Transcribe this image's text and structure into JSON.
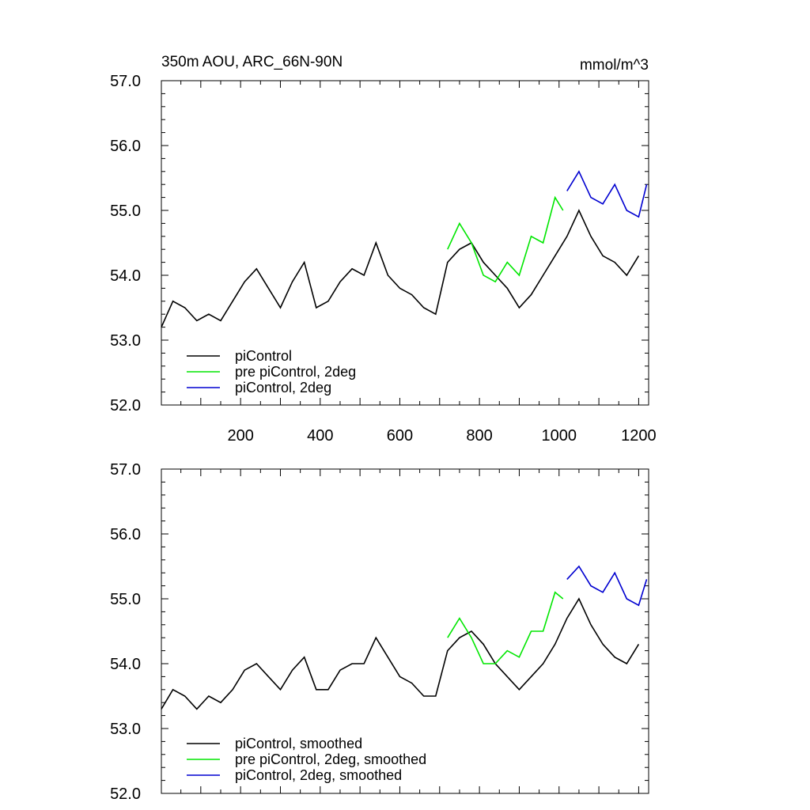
{
  "colors": {
    "black": "#000000",
    "green": "#00e600",
    "blue": "#0000d0"
  },
  "chart_data": [
    {
      "type": "line",
      "title": "350m AOU, ARC_66N-90N",
      "units_label": "mmol/m^3",
      "xlim": [
        1,
        1225
      ],
      "ylim": [
        52.0,
        57.0
      ],
      "xticks": [
        200,
        400,
        600,
        800,
        1000,
        1200
      ],
      "xtick_labels": [
        "200",
        "400",
        "600",
        "800",
        "1000",
        "1200"
      ],
      "yticks": [
        52.0,
        53.0,
        54.0,
        55.0,
        56.0,
        57.0
      ],
      "ytick_labels": [
        "52.0",
        "53.0",
        "54.0",
        "55.0",
        "56.0",
        "57.0"
      ],
      "legend_position": "lower-left",
      "series": [
        {
          "name": "piControl",
          "color": "#000000",
          "x": [
            1,
            30,
            60,
            90,
            120,
            150,
            180,
            210,
            240,
            270,
            300,
            330,
            360,
            390,
            420,
            450,
            480,
            510,
            540,
            570,
            600,
            630,
            660,
            690,
            720,
            750,
            780,
            810,
            840,
            870,
            900,
            930,
            960,
            990,
            1020,
            1050,
            1080,
            1110,
            1140,
            1170,
            1200
          ],
          "values": [
            53.2,
            53.6,
            53.5,
            53.3,
            53.4,
            53.3,
            53.6,
            53.9,
            54.1,
            53.8,
            53.5,
            53.9,
            54.2,
            53.5,
            53.6,
            53.9,
            54.1,
            54.0,
            54.5,
            54.0,
            53.8,
            53.7,
            53.5,
            53.4,
            54.2,
            54.4,
            54.5,
            54.2,
            54.0,
            53.8,
            53.5,
            53.7,
            54.0,
            54.3,
            54.6,
            55.0,
            54.6,
            54.3,
            54.2,
            54.0,
            54.3
          ]
        },
        {
          "name": "pre piControl, 2deg",
          "color": "#00e600",
          "x": [
            720,
            750,
            780,
            810,
            840,
            870,
            900,
            930,
            960,
            990,
            1010
          ],
          "values": [
            54.4,
            54.8,
            54.5,
            54.0,
            53.9,
            54.2,
            54.0,
            54.6,
            54.5,
            55.2,
            55.0
          ]
        },
        {
          "name": "piControl, 2deg",
          "color": "#0000d0",
          "x": [
            1020,
            1050,
            1080,
            1110,
            1140,
            1170,
            1200,
            1220
          ],
          "values": [
            55.3,
            55.6,
            55.2,
            55.1,
            55.4,
            55.0,
            54.9,
            55.4
          ]
        }
      ]
    },
    {
      "type": "line",
      "xlim": [
        1,
        1225
      ],
      "ylim": [
        52.0,
        57.0
      ],
      "yticks": [
        52.0,
        53.0,
        54.0,
        55.0,
        56.0,
        57.0
      ],
      "ytick_labels": [
        "52.0",
        "53.0",
        "54.0",
        "55.0",
        "56.0",
        "57.0"
      ],
      "legend_position": "lower-left",
      "series": [
        {
          "name": "piControl, smoothed",
          "color": "#000000",
          "x": [
            1,
            30,
            60,
            90,
            120,
            150,
            180,
            210,
            240,
            270,
            300,
            330,
            360,
            390,
            420,
            450,
            480,
            510,
            540,
            570,
            600,
            630,
            660,
            690,
            720,
            750,
            780,
            810,
            840,
            870,
            900,
            930,
            960,
            990,
            1020,
            1050,
            1080,
            1110,
            1140,
            1170,
            1200
          ],
          "values": [
            53.3,
            53.6,
            53.5,
            53.3,
            53.5,
            53.4,
            53.6,
            53.9,
            54.0,
            53.8,
            53.6,
            53.9,
            54.1,
            53.6,
            53.6,
            53.9,
            54.0,
            54.0,
            54.4,
            54.1,
            53.8,
            53.7,
            53.5,
            53.5,
            54.2,
            54.4,
            54.5,
            54.3,
            54.0,
            53.8,
            53.6,
            53.8,
            54.0,
            54.3,
            54.7,
            55.0,
            54.6,
            54.3,
            54.1,
            54.0,
            54.3
          ]
        },
        {
          "name": "pre piControl, 2deg, smoothed",
          "color": "#00e600",
          "x": [
            720,
            750,
            780,
            810,
            840,
            870,
            900,
            930,
            960,
            990,
            1010
          ],
          "values": [
            54.4,
            54.7,
            54.4,
            54.0,
            54.0,
            54.2,
            54.1,
            54.5,
            54.5,
            55.1,
            55.0
          ]
        },
        {
          "name": "piControl, 2deg, smoothed",
          "color": "#0000d0",
          "x": [
            1020,
            1050,
            1080,
            1110,
            1140,
            1170,
            1200,
            1220
          ],
          "values": [
            55.3,
            55.5,
            55.2,
            55.1,
            55.4,
            55.0,
            54.9,
            55.3
          ]
        }
      ]
    }
  ]
}
